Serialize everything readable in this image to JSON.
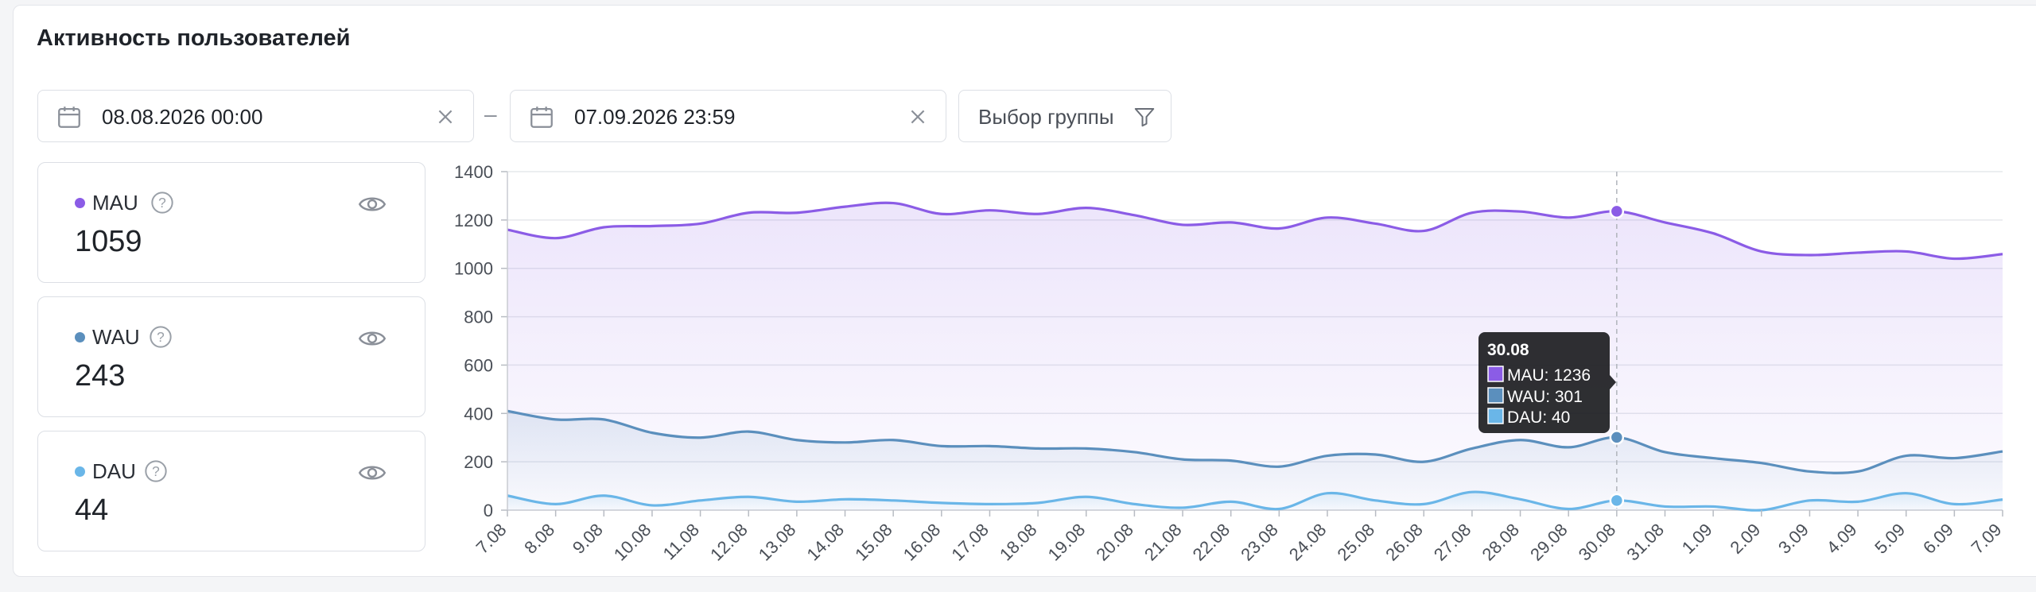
{
  "title": "Активность пользователей",
  "filters": {
    "date_from": "08.08.2026 00:00",
    "date_to": "07.09.2026 23:59",
    "separator": "–",
    "group_label": "Выбор группы"
  },
  "metrics": [
    {
      "name": "MAU",
      "value": "1059",
      "color": "#8b5ce6"
    },
    {
      "name": "WAU",
      "value": "243",
      "color": "#5b8fbd"
    },
    {
      "name": "DAU",
      "value": "44",
      "color": "#6ab6e8"
    }
  ],
  "tooltip": {
    "date": "30.08",
    "items": [
      "MAU: 1236",
      "WAU: 301",
      "DAU: 40"
    ]
  },
  "chart_data": {
    "type": "area",
    "categories": [
      "7.08",
      "8.08",
      "9.08",
      "10.08",
      "11.08",
      "12.08",
      "13.08",
      "14.08",
      "15.08",
      "16.08",
      "17.08",
      "18.08",
      "19.08",
      "20.08",
      "21.08",
      "22.08",
      "23.08",
      "24.08",
      "25.08",
      "26.08",
      "27.08",
      "28.08",
      "29.08",
      "30.08",
      "31.08",
      "1.09",
      "2.09",
      "3.09",
      "4.09",
      "5.09",
      "6.09",
      "7.09"
    ],
    "ylim": [
      0,
      1400
    ],
    "yticks": [
      0,
      200,
      400,
      600,
      800,
      1000,
      1200,
      1400
    ],
    "grid": true,
    "highlight_index": 23,
    "series": [
      {
        "name": "MAU",
        "color": "#8b5ce6",
        "values": [
          1160,
          1125,
          1170,
          1175,
          1185,
          1230,
          1230,
          1255,
          1270,
          1225,
          1240,
          1225,
          1250,
          1220,
          1180,
          1190,
          1165,
          1210,
          1185,
          1155,
          1230,
          1235,
          1210,
          1236,
          1190,
          1145,
          1070,
          1055,
          1065,
          1070,
          1040,
          1059
        ]
      },
      {
        "name": "WAU",
        "color": "#5b8fbd",
        "values": [
          410,
          375,
          375,
          320,
          300,
          325,
          290,
          280,
          290,
          265,
          265,
          255,
          255,
          240,
          210,
          205,
          180,
          225,
          230,
          200,
          255,
          290,
          260,
          301,
          240,
          215,
          195,
          160,
          160,
          225,
          215,
          243
        ]
      },
      {
        "name": "DAU",
        "color": "#6ab6e8",
        "values": [
          60,
          25,
          60,
          20,
          40,
          55,
          35,
          45,
          40,
          30,
          25,
          30,
          55,
          25,
          10,
          35,
          5,
          70,
          40,
          25,
          75,
          45,
          5,
          40,
          15,
          15,
          0,
          40,
          35,
          70,
          25,
          44
        ]
      }
    ]
  }
}
